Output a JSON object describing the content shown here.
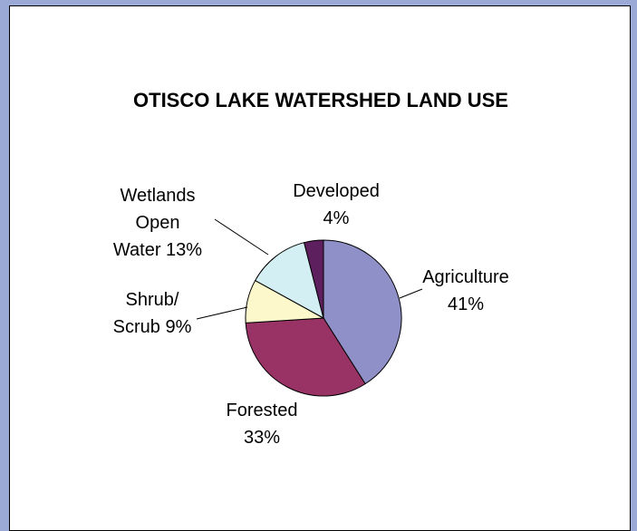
{
  "chart_data": {
    "type": "pie",
    "title": "OTISCO LAKE WATERSHED LAND USE",
    "slices": [
      {
        "name": "Agriculture",
        "value": 41,
        "color": "#9090c8",
        "label_lines": [
          "Agriculture",
          "41%"
        ]
      },
      {
        "name": "Forested",
        "value": 33,
        "color": "#993366",
        "label_lines": [
          "Forested",
          "33%"
        ]
      },
      {
        "name": "Shrub/ Scrub",
        "value": 9,
        "color": "#fcf8cc",
        "label_lines": [
          "Shrub/",
          "Scrub 9%"
        ]
      },
      {
        "name": "Wetlands Open Water",
        "value": 13,
        "color": "#d4eff4",
        "label_lines": [
          "Wetlands",
          "Open",
          "Water 13%"
        ]
      },
      {
        "name": "Developed",
        "value": 4,
        "color": "#5e1f5e",
        "label_lines": [
          "Developed",
          "4%"
        ]
      }
    ],
    "start": "12 o'clock",
    "direction": "clockwise",
    "legend": "none"
  }
}
